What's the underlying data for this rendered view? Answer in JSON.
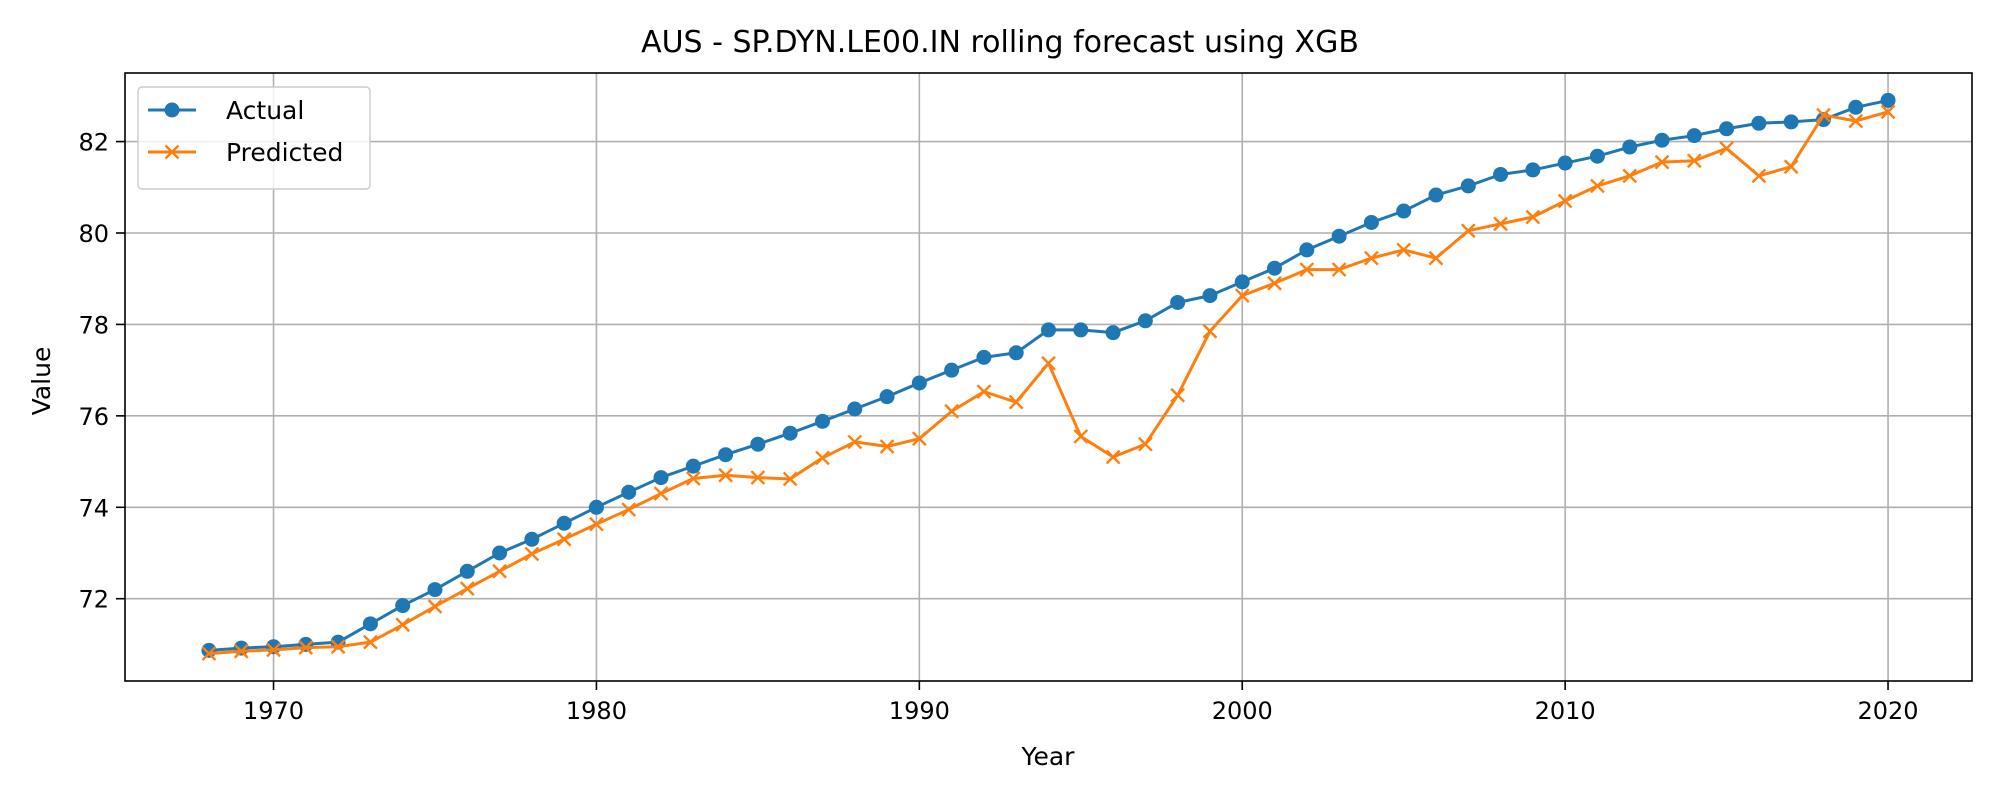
{
  "chart_data": {
    "type": "line",
    "title": "AUS - SP.DYN.LE00.IN rolling forecast using XGB",
    "xlabel": "Year",
    "ylabel": "Value",
    "xlim": [
      1965.4,
      2022.6
    ],
    "ylim": [
      70.2,
      83.5
    ],
    "x_ticks": [
      1970,
      1980,
      1990,
      2000,
      2010,
      2020
    ],
    "y_ticks": [
      72,
      74,
      76,
      78,
      80,
      82
    ],
    "grid": true,
    "legend_position": "upper-left",
    "x": [
      1968,
      1969,
      1970,
      1971,
      1972,
      1973,
      1974,
      1975,
      1976,
      1977,
      1978,
      1979,
      1980,
      1981,
      1982,
      1983,
      1984,
      1985,
      1986,
      1987,
      1988,
      1989,
      1990,
      1991,
      1992,
      1993,
      1994,
      1995,
      1996,
      1997,
      1998,
      1999,
      2000,
      2001,
      2002,
      2003,
      2004,
      2005,
      2006,
      2007,
      2008,
      2009,
      2010,
      2011,
      2012,
      2013,
      2014,
      2015,
      2016,
      2017,
      2018,
      2019,
      2020
    ],
    "series": [
      {
        "name": "Actual",
        "color": "#1f77b4",
        "marker": "circle",
        "values": [
          70.87,
          70.92,
          70.95,
          71.0,
          71.05,
          71.45,
          71.85,
          72.2,
          72.6,
          73.0,
          73.3,
          73.65,
          74.0,
          74.33,
          74.65,
          74.9,
          75.15,
          75.38,
          75.62,
          75.88,
          76.15,
          76.42,
          76.72,
          77.0,
          77.28,
          77.38,
          77.88,
          77.88,
          77.82,
          78.08,
          78.48,
          78.63,
          78.93,
          79.23,
          79.63,
          79.93,
          80.23,
          80.48,
          80.83,
          81.03,
          81.28,
          81.38,
          81.53,
          81.68,
          81.88,
          82.03,
          82.13,
          82.28,
          82.4,
          82.43,
          82.48,
          82.75,
          82.9
        ]
      },
      {
        "name": "Predicted",
        "color": "#ff7f0e",
        "marker": "x",
        "values": [
          70.8,
          70.85,
          70.88,
          70.93,
          70.95,
          71.05,
          71.43,
          71.83,
          72.22,
          72.6,
          72.98,
          73.3,
          73.63,
          73.95,
          74.3,
          74.63,
          74.7,
          74.65,
          74.62,
          75.08,
          75.43,
          75.33,
          75.5,
          76.1,
          76.53,
          76.3,
          77.15,
          75.55,
          75.1,
          75.38,
          76.45,
          77.85,
          78.63,
          78.9,
          79.2,
          79.2,
          79.45,
          79.63,
          79.45,
          80.05,
          80.2,
          80.35,
          80.7,
          81.03,
          81.25,
          81.55,
          81.58,
          81.85,
          81.25,
          81.45,
          82.58,
          82.45,
          82.65
        ]
      }
    ]
  }
}
